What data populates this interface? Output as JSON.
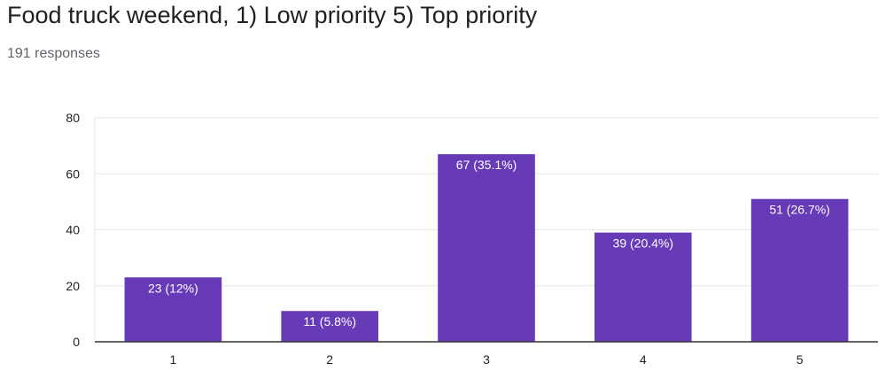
{
  "title": "Food truck weekend, 1) Low priority 5) Top priority",
  "subtitle": "191 responses",
  "colors": {
    "bar": "#673ab7",
    "grid": "#e6e6e6",
    "axis": "#333333"
  },
  "chart_data": {
    "type": "bar",
    "categories": [
      "1",
      "2",
      "3",
      "4",
      "5"
    ],
    "values": [
      23,
      11,
      67,
      39,
      51
    ],
    "data_labels": [
      "23 (12%)",
      "11 (5.8%)",
      "67 (35.1%)",
      "39 (20.4%)",
      "51 (26.7%)"
    ],
    "ylim": [
      0,
      80
    ],
    "yticks": [
      "0",
      "20",
      "40",
      "60",
      "80"
    ],
    "grid": true,
    "legend": "none"
  }
}
